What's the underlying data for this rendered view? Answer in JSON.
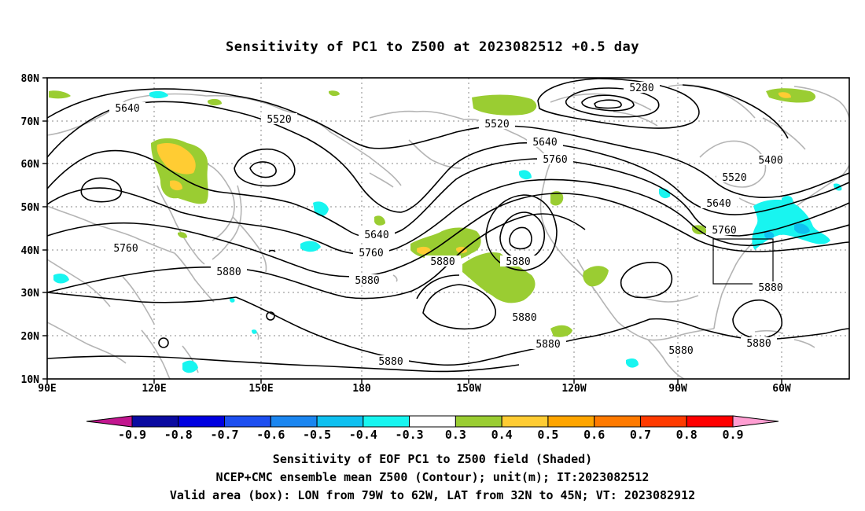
{
  "title": "Sensitivity of PC1 to Z500 at 2023082512 +0.5 day",
  "map": {
    "lat_ticks": [
      "80N",
      "70N",
      "60N",
      "50N",
      "40N",
      "30N",
      "20N",
      "10N"
    ],
    "lon_ticks": [
      "90E",
      "120E",
      "150E",
      "180",
      "150W",
      "120W",
      "90W",
      "60W"
    ],
    "contour_labels": [
      "5280",
      "5400",
      "5520",
      "5520",
      "5520",
      "5640",
      "5640",
      "5640",
      "5640",
      "5760",
      "5760",
      "5760",
      "5760",
      "5880",
      "5880",
      "5880",
      "5880",
      "5880",
      "5880",
      "5880",
      "5880",
      "5880"
    ],
    "valid_box": {
      "lon_min": "79W",
      "lon_max": "62W",
      "lat_min": "32N",
      "lat_max": "45N"
    }
  },
  "colorbar": {
    "labels": [
      "-0.9",
      "-0.8",
      "-0.7",
      "-0.6",
      "-0.5",
      "-0.4",
      "-0.3",
      "0.3",
      "0.4",
      "0.5",
      "0.6",
      "0.7",
      "0.8",
      "0.9"
    ],
    "colors": [
      "#c2168f",
      "#0a0aa0",
      "#0000e0",
      "#1d4ff0",
      "#1b86f0",
      "#0fc0f0",
      "#18f5f0",
      "#ffffff",
      "#9acd32",
      "#ffcc33",
      "#ffa500",
      "#ff7a00",
      "#ff3a00",
      "#ff0000",
      "#ff9ed2"
    ]
  },
  "footer": {
    "line1": "Sensitivity of EOF PC1 to Z500 field (Shaded)",
    "line2": "NCEP+CMC ensemble mean Z500 (Contour); unit(m); IT:2023082512",
    "line3": "Valid area (box): LON from 79W to 62W, LAT from 32N to 45N; VT: 2023082912"
  }
}
